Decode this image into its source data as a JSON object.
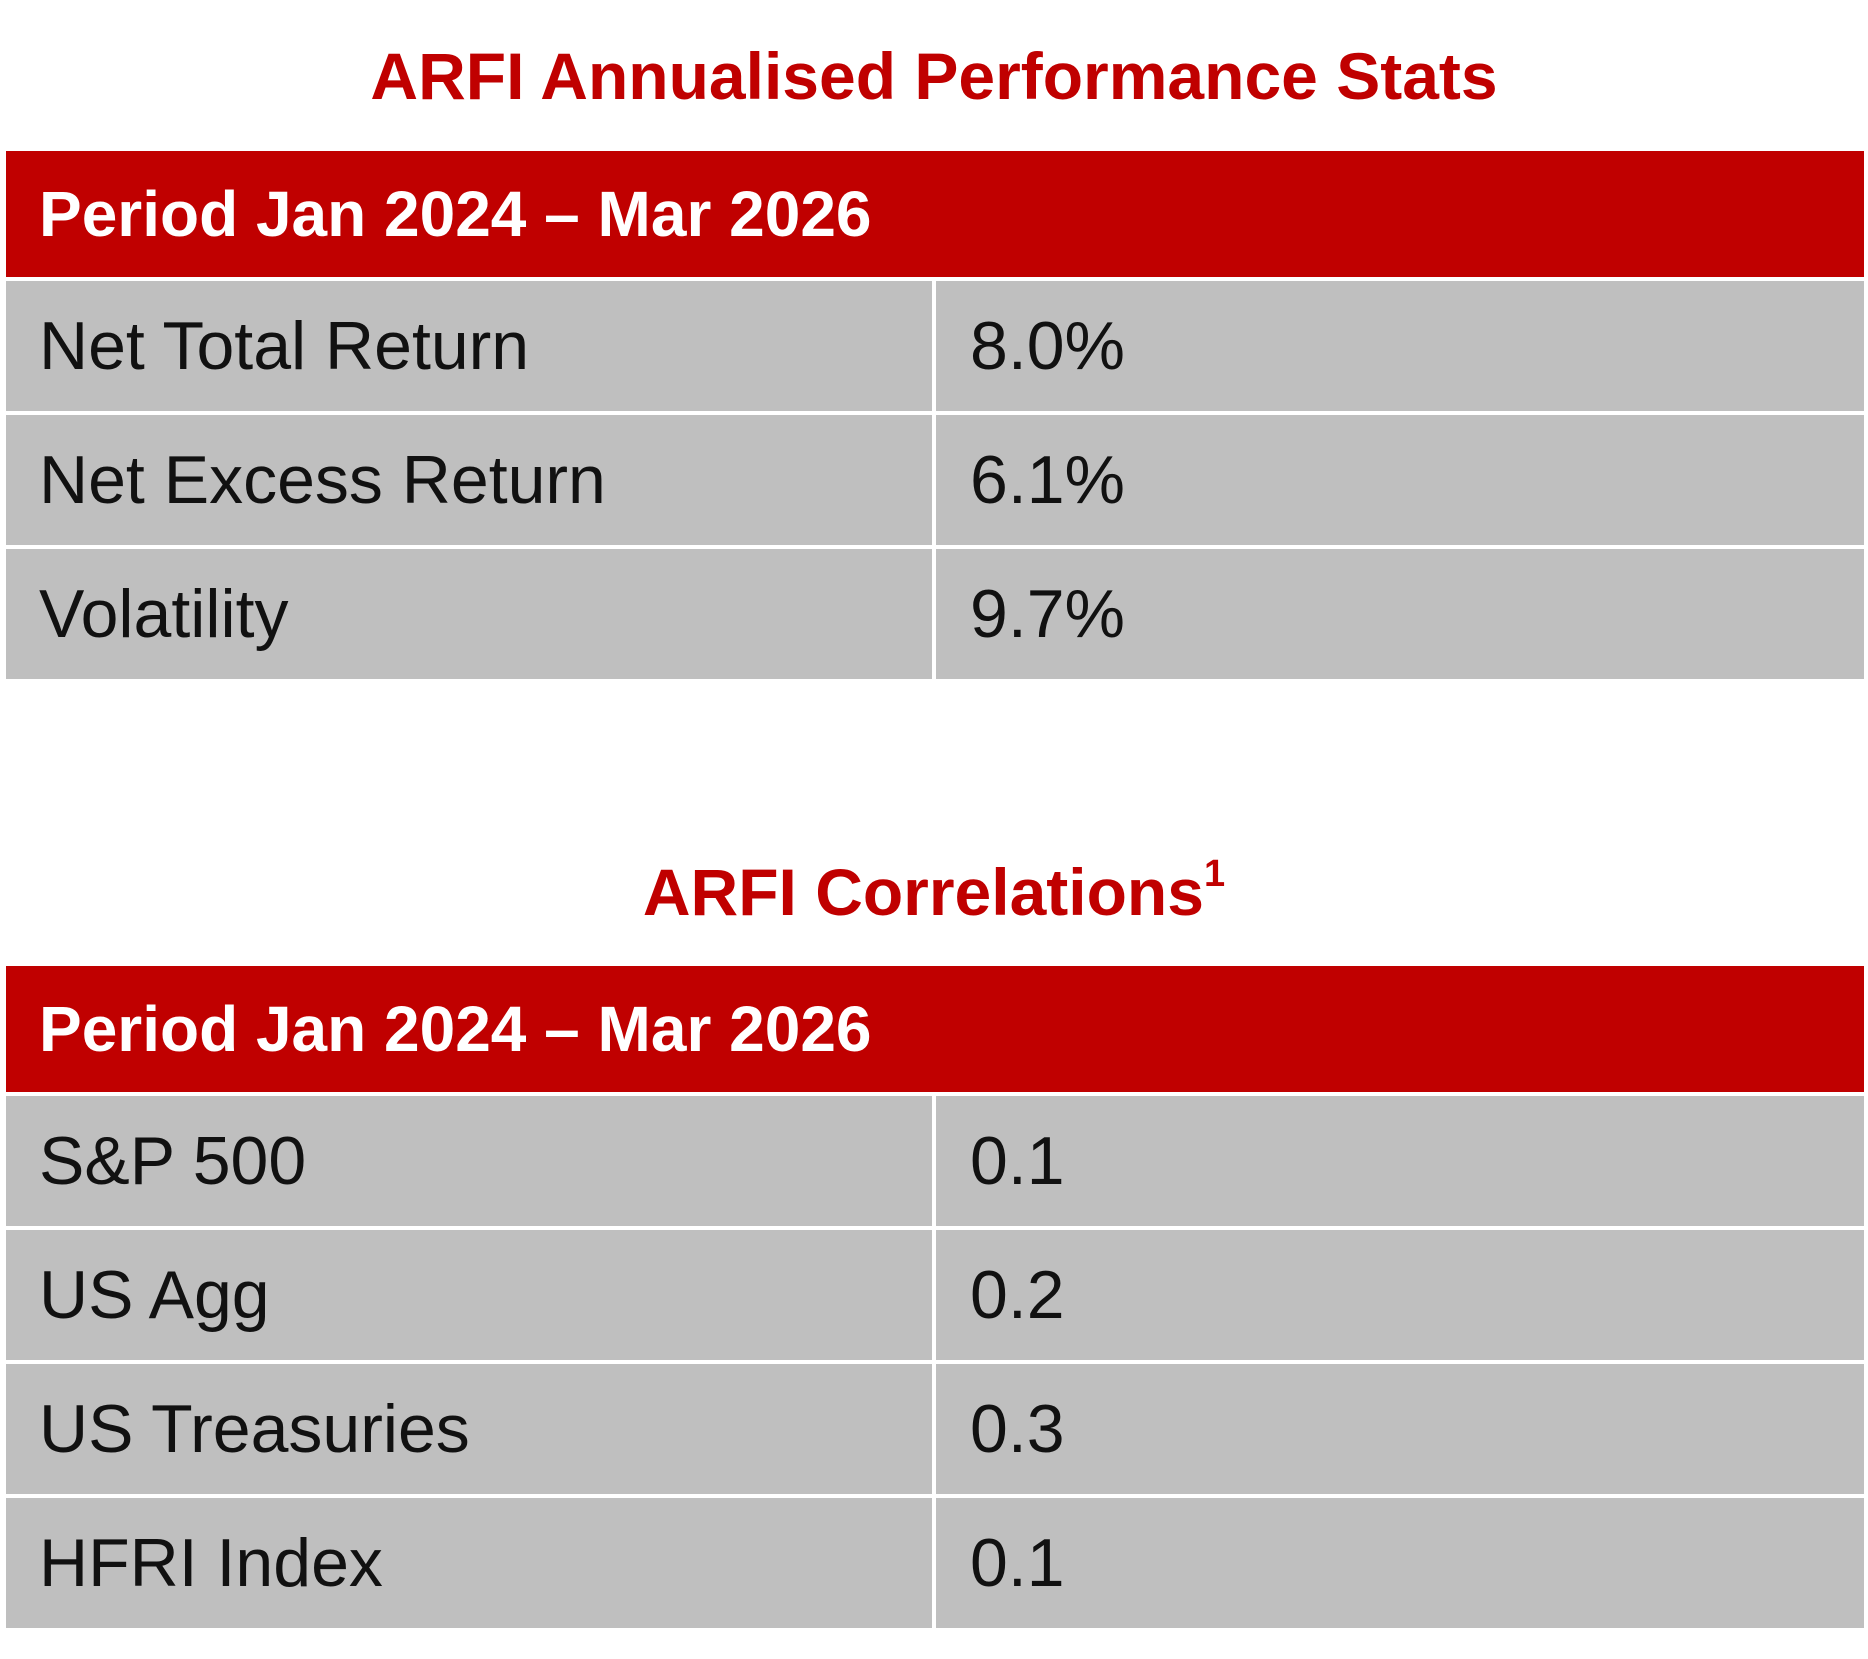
{
  "performance": {
    "title": "ARFI Annualised Performance Stats",
    "header": "Period Jan 2024 – Mar 2026",
    "rows": [
      {
        "label": "Net Total Return",
        "value": "8.0%"
      },
      {
        "label": "Net Excess Return",
        "value": "6.1%"
      },
      {
        "label": "Volatility",
        "value": "9.7%"
      }
    ]
  },
  "correlations": {
    "title": "ARFI Correlations",
    "title_superscript": "1",
    "header": "Period Jan 2024 – Mar 2026",
    "rows": [
      {
        "label": "S&P 500",
        "value": "0.1"
      },
      {
        "label": "US Agg",
        "value": "0.2"
      },
      {
        "label": "US Treasuries",
        "value": "0.3"
      },
      {
        "label": "HFRI Index",
        "value": "0.1"
      }
    ]
  },
  "colors": {
    "accent": "#c00000",
    "cell_background": "#bfbfbf"
  }
}
